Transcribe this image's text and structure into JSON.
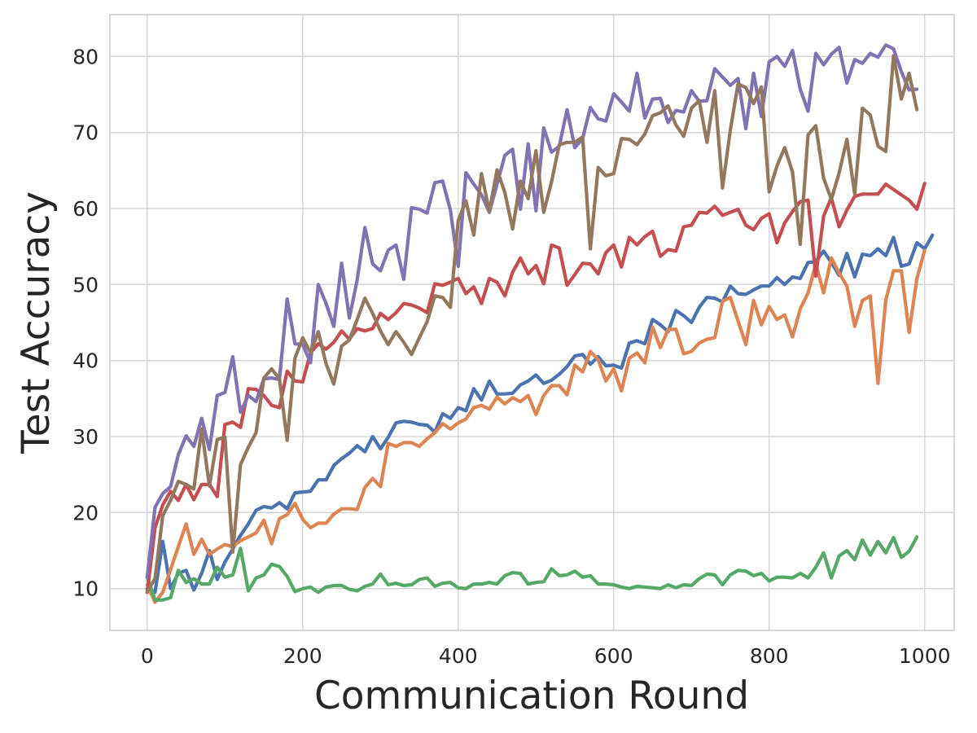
{
  "chart_data": {
    "type": "line",
    "title": "",
    "xlabel": "Communication Round",
    "ylabel": "Test Accuracy",
    "xlim": [
      -48,
      1038
    ],
    "ylim": [
      4.5,
      85.5
    ],
    "xticks": [
      0,
      200,
      400,
      600,
      800,
      1000
    ],
    "yticks": [
      10,
      20,
      30,
      40,
      50,
      60,
      70,
      80
    ],
    "xtick_labels": [
      "0",
      "200",
      "400",
      "600",
      "800",
      "1000"
    ],
    "ytick_labels": [
      "10",
      "20",
      "30",
      "40",
      "50",
      "60",
      "70",
      "80"
    ],
    "grid": true,
    "legend": "none",
    "x_start": 0,
    "x_step": 10,
    "series": [
      {
        "color": "#4c72b0",
        "values": [
          10,
          9.5,
          16.2,
          10,
          12,
          12.4,
          9.8,
          12,
          15,
          11.2,
          13.5,
          15.2,
          17,
          18.5,
          20.3,
          20.8,
          20.6,
          21.3,
          20.5,
          22.6,
          22.7,
          22.8,
          24.3,
          24.3,
          26.2,
          27.1,
          27.8,
          28.8,
          28,
          30,
          28.4,
          29.9,
          31.8,
          32,
          31.9,
          31.6,
          31.5,
          30.6,
          33,
          32.4,
          33.8,
          33.4,
          36.3,
          34.8,
          37.3,
          35.6,
          35.6,
          35.7,
          36.8,
          37.3,
          38.1,
          37,
          37.4,
          38.2,
          39.2,
          40.6,
          40.8,
          39.5,
          40.5,
          39.3,
          39.4,
          39,
          42.3,
          42.6,
          42.2,
          45.4,
          44.7,
          43.8,
          46.6,
          45.9,
          45,
          47,
          48.3,
          48.2,
          47.7,
          49.8,
          48.8,
          48.7,
          49.3,
          49.8,
          49.8,
          50.9,
          50,
          51,
          50.8,
          52.9,
          53,
          54.4,
          52.9,
          51.2,
          54.1,
          51,
          54,
          53.8,
          54.7,
          53.8,
          56.2,
          52.4,
          52.7,
          55.5,
          54.7,
          56.5
        ]
      },
      {
        "color": "#dd8452",
        "values": [
          10.5,
          8.2,
          9.5,
          12.5,
          15.5,
          18.5,
          14.5,
          16.5,
          14.5,
          15.2,
          15.8,
          15.5,
          16.3,
          16.8,
          17.3,
          19,
          15.9,
          19.2,
          19.7,
          21.2,
          19.1,
          18,
          18.6,
          18.6,
          19.8,
          20.5,
          20.5,
          20.4,
          23.3,
          24.5,
          23.4,
          29.1,
          28.7,
          29.2,
          29.2,
          28.7,
          29.7,
          30.5,
          31.7,
          31,
          31.8,
          32.3,
          33.8,
          34.1,
          33.6,
          35.2,
          34.3,
          35.1,
          34.6,
          35.4,
          32.9,
          35.4,
          36.7,
          36.7,
          35.5,
          39.4,
          38.5,
          41.2,
          40.1,
          37.3,
          38.9,
          36,
          40.3,
          41,
          39.7,
          44.4,
          41.7,
          44.1,
          44.1,
          40.9,
          41.2,
          42.3,
          42.8,
          43,
          47.8,
          48.3,
          45.2,
          42.1,
          47.9,
          44.7,
          47.1,
          45.4,
          46,
          43.1,
          46.8,
          48.9,
          52.7,
          48.9,
          53.5,
          51.5,
          49.8,
          44.5,
          47.9,
          48.5,
          37,
          48,
          51.8,
          51.8,
          43.7,
          50.8,
          54.5
        ]
      },
      {
        "color": "#55a868",
        "values": [
          11.5,
          8.5,
          8.5,
          8.8,
          12.4,
          10.8,
          11.3,
          10.6,
          10.6,
          12.8,
          11.5,
          11.8,
          15.3,
          9.7,
          11.4,
          11.8,
          13.2,
          12.9,
          11.6,
          9.6,
          10,
          10.2,
          9.5,
          10.2,
          10.4,
          10.4,
          9.9,
          9.7,
          10.3,
          10.6,
          11.9,
          10.5,
          10.7,
          10.4,
          10.5,
          11.2,
          11.4,
          10.3,
          10.7,
          10.8,
          10.1,
          10,
          10.6,
          10.6,
          10.8,
          10.6,
          11.7,
          12.1,
          12,
          10.6,
          10.8,
          10.9,
          12.6,
          11.7,
          11.8,
          12.3,
          11.5,
          11.7,
          10.6,
          10.6,
          10.5,
          10.2,
          10,
          10.3,
          10.2,
          10.1,
          10,
          10.5,
          10.1,
          10.5,
          10.4,
          11.3,
          11.9,
          11.8,
          10.5,
          11.8,
          12.4,
          12.3,
          11.7,
          12,
          11,
          11.5,
          11.5,
          11.4,
          12,
          11.4,
          12.8,
          14.7,
          11.4,
          14.3,
          15,
          13.8,
          16.4,
          14.4,
          16.2,
          14.7,
          16.7,
          14.1,
          14.9,
          16.8
        ]
      },
      {
        "color": "#c44e52",
        "values": [
          9.5,
          18,
          21,
          22.8,
          21.6,
          23.7,
          21.7,
          23.7,
          23.7,
          22.1,
          31.6,
          31.9,
          31.2,
          36.3,
          36.2,
          35.4,
          34.1,
          33.8,
          38.6,
          37.3,
          37.2,
          41,
          42.2,
          41.5,
          42.4,
          43.9,
          42.8,
          44.2,
          43.9,
          44.2,
          46.2,
          45.4,
          46.3,
          47.5,
          47.3,
          46.9,
          46.3,
          50.1,
          49.9,
          50.3,
          50.8,
          48.8,
          49.7,
          47.5,
          50.8,
          50.3,
          48.5,
          51.6,
          53.5,
          51.4,
          52.5,
          50.1,
          55.2,
          54.8,
          49.9,
          51.3,
          52.8,
          52.7,
          51.4,
          54.2,
          55.2,
          52.3,
          56.2,
          55.2,
          56.3,
          57,
          53.7,
          54.6,
          54.4,
          57.6,
          57.8,
          59.5,
          59.4,
          60.3,
          59.1,
          59.5,
          59.9,
          57.8,
          57.2,
          58.7,
          59.3,
          55.5,
          58.1,
          59.6,
          60.9,
          61.1,
          51.1,
          59,
          61.4,
          57.6,
          59.8,
          61.6,
          61.9,
          61.9,
          61.9,
          63.2,
          62.5,
          61.8,
          61.1,
          59.9,
          63.3
        ]
      },
      {
        "color": "#8172b3",
        "values": [
          11.5,
          20.7,
          22.5,
          23.4,
          27.6,
          30.1,
          28.7,
          32.4,
          28.3,
          35.4,
          35.8,
          40.5,
          33.2,
          35.4,
          34.6,
          37.6,
          37.7,
          37.5,
          48.1,
          42.2,
          42.1,
          39.7,
          50,
          47.5,
          44.5,
          52.8,
          45.6,
          50.6,
          57.5,
          52.7,
          51.8,
          54.5,
          55.2,
          50.7,
          60.1,
          59.9,
          59.4,
          63.4,
          63.6,
          59.8,
          52.4,
          64.7,
          63.2,
          61.8,
          59.5,
          63.2,
          67,
          67.8,
          59.9,
          68.5,
          59.7,
          70.6,
          67.4,
          68.2,
          73,
          68,
          69.2,
          73.3,
          71.8,
          71.5,
          75.1,
          74,
          72.8,
          77.8,
          71.9,
          74.4,
          74.5,
          71.3,
          72.9,
          72.7,
          75.5,
          74.1,
          74.2,
          78.4,
          77.3,
          76.2,
          77.1,
          70.5,
          77.8,
          72.1,
          79.3,
          80,
          78.7,
          80.8,
          75.7,
          72.8,
          80.4,
          78.9,
          80.3,
          81.2,
          76.5,
          79.6,
          79.1,
          80.4,
          79.9,
          81.5,
          81,
          78,
          75.6,
          75.7
        ]
      },
      {
        "color": "#937860",
        "values": [
          9.6,
          11.3,
          19.6,
          21.6,
          24.1,
          23.7,
          23.1,
          31,
          23.5,
          29.6,
          29.9,
          14.8,
          26.3,
          28.6,
          30.5,
          37.7,
          38.9,
          37.6,
          29.5,
          40.3,
          43,
          41,
          43.8,
          39.6,
          36.9,
          41.9,
          42.7,
          45.4,
          48.2,
          46.2,
          43.9,
          42.1,
          43.8,
          42.4,
          40.8,
          43,
          45.1,
          48.5,
          48.3,
          47,
          58.4,
          61,
          56.5,
          64.6,
          59.6,
          65.1,
          62.1,
          57.3,
          63.6,
          61.3,
          67.6,
          59.5,
          63.5,
          68.4,
          68.7,
          68.7,
          69.4,
          54.7,
          65.4,
          64.3,
          64.6,
          69.2,
          69.1,
          68.4,
          69.8,
          72.2,
          72.6,
          73.5,
          71,
          69.5,
          73.2,
          74.2,
          68.7,
          75.5,
          62.7,
          70.3,
          76.4,
          75.9,
          73.8,
          76,
          62.2,
          65.6,
          68,
          64.8,
          55.3,
          69.7,
          70.9,
          64,
          61.2,
          64.7,
          69.1,
          61.9,
          73.2,
          72.3,
          68.2,
          67.5,
          80.1,
          74.4,
          77.8,
          73
        ]
      }
    ]
  }
}
